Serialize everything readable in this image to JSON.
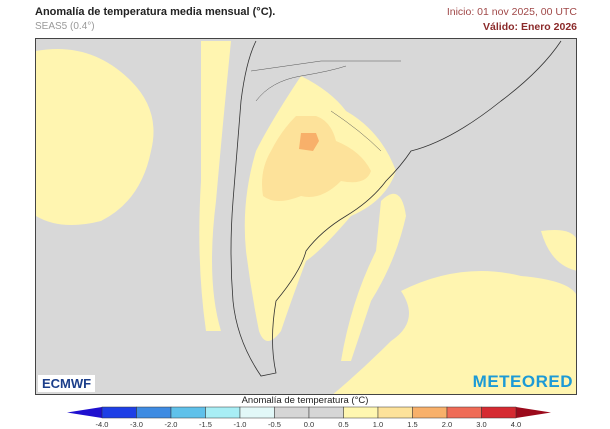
{
  "header": {
    "title": "Anomalía de temperatura media mensual (°C).",
    "model": "SEAS5 (0.4°)",
    "init": "Inicio: 01 nov 2025, 00 UTC",
    "valid": "Válido: Enero 2026"
  },
  "map": {
    "region": "South America (southern cone)",
    "background_color": "#d8d8d8",
    "logos": {
      "left": "ECMWF",
      "right": "METEORED"
    }
  },
  "colorbar": {
    "title": "Anomalía de temperatura (°C)",
    "ticks": [
      "-4.0",
      "-3.0",
      "-2.0",
      "-1.5",
      "-1.0",
      "-0.5",
      "0.0",
      "0.5",
      "1.0",
      "1.5",
      "2.0",
      "3.0",
      "4.0"
    ],
    "colors": [
      "#1e3fe6",
      "#3e8be2",
      "#5fc1ea",
      "#a8eef5",
      "#e2f8f8",
      "#d6d6d6",
      "#d6d6d6",
      "#fff7b0",
      "#fde29a",
      "#f8b06a",
      "#ef6b56",
      "#d52a31"
    ],
    "under_color": "#1f10cf",
    "over_color": "#9b0a1b"
  }
}
